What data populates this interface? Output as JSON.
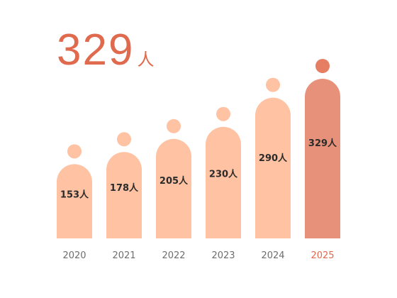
{
  "headline": {
    "value": "329",
    "unit": "人"
  },
  "chart_data": {
    "type": "bar",
    "categories": [
      "2020",
      "2021",
      "2022",
      "2023",
      "2024",
      "2025"
    ],
    "values": [
      153,
      178,
      205,
      230,
      290,
      329
    ],
    "labels": [
      "153人",
      "178人",
      "205人",
      "230人",
      "290人",
      "329人"
    ],
    "highlight_index": 5,
    "ylim": [
      0,
      329
    ],
    "grid": false,
    "colors": {
      "bar": "#ffc2a3",
      "highlight": "#e8917a",
      "head": "#ffc2a3",
      "highlight_head": "#e57e63",
      "tick_highlight": "#e06a4e"
    }
  }
}
